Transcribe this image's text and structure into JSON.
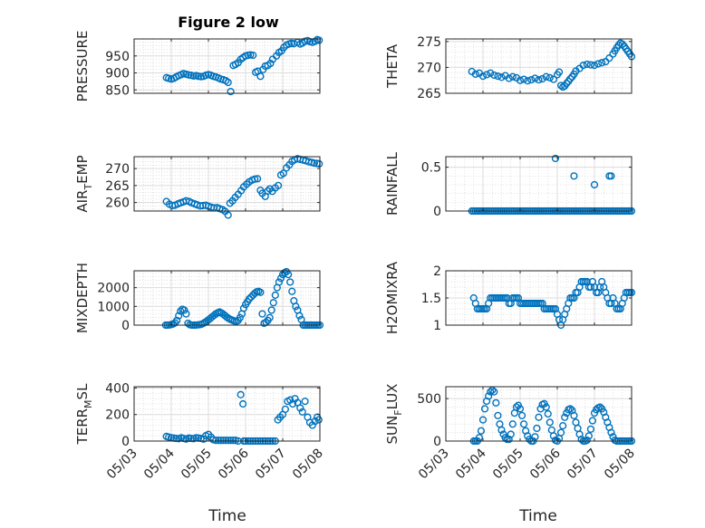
{
  "figure": {
    "title": "Figure 2 low",
    "xlabel": "Time",
    "x_tick_labels": [
      "05/03",
      "05/04",
      "05/05",
      "05/06",
      "05/07",
      "05/08"
    ],
    "marker_color": "#0072BD",
    "grid": true
  },
  "chart_data": [
    {
      "type": "scatter",
      "name": "PRESSURE",
      "ylabel": "PRESSURE",
      "title": "Figure 2 low",
      "xlim": [
        0,
        5
      ],
      "ylim": [
        840,
        1000
      ],
      "yticks": [
        850,
        900,
        950
      ],
      "ytick_labels": [
        "850",
        "900",
        "950"
      ],
      "show_x_ticklabels": false,
      "x": [
        0.87,
        0.93,
        1.0,
        1.07,
        1.13,
        1.2,
        1.27,
        1.33,
        1.4,
        1.47,
        1.53,
        1.6,
        1.67,
        1.73,
        1.8,
        1.87,
        1.93,
        2.0,
        2.07,
        2.13,
        2.2,
        2.27,
        2.33,
        2.4,
        2.47,
        2.53,
        2.6,
        2.67,
        2.73,
        2.8,
        2.87,
        2.93,
        3.0,
        3.07,
        3.13,
        3.2,
        3.27,
        3.33,
        3.4,
        3.47,
        3.53,
        3.6,
        3.67,
        3.73,
        3.83,
        3.9,
        3.97,
        4.03,
        4.1,
        4.17,
        4.23,
        4.3,
        4.4,
        4.47,
        4.53,
        4.6,
        4.67,
        4.73,
        4.8,
        4.87,
        4.93,
        4.98
      ],
      "y": [
        886,
        884,
        882,
        884,
        888,
        892,
        895,
        898,
        896,
        894,
        893,
        891,
        892,
        890,
        889,
        890,
        893,
        895,
        893,
        890,
        888,
        885,
        882,
        880,
        877,
        872,
        845,
        922,
        925,
        930,
        940,
        945,
        950,
        952,
        953,
        952,
        902,
        905,
        890,
        910,
        920,
        922,
        928,
        940,
        950,
        960,
        965,
        975,
        982,
        985,
        987,
        986,
        990,
        985,
        988,
        993,
        995,
        992,
        990,
        993,
        998,
        996
      ]
    },
    {
      "type": "scatter",
      "name": "THETA",
      "ylabel": "THETA",
      "xlim": [
        0,
        5
      ],
      "ylim": [
        265,
        275.5
      ],
      "yticks": [
        265,
        270,
        275
      ],
      "ytick_labels": [
        "265",
        "270",
        "275"
      ],
      "show_x_ticklabels": false,
      "x": [
        0.7,
        0.8,
        0.9,
        1.0,
        1.1,
        1.2,
        1.3,
        1.4,
        1.5,
        1.6,
        1.7,
        1.8,
        1.9,
        2.0,
        2.1,
        2.2,
        2.3,
        2.4,
        2.5,
        2.6,
        2.7,
        2.8,
        2.9,
        3.0,
        3.05,
        3.1,
        3.15,
        3.2,
        3.25,
        3.3,
        3.35,
        3.4,
        3.45,
        3.5,
        3.6,
        3.7,
        3.8,
        3.9,
        4.0,
        4.1,
        4.2,
        4.3,
        4.4,
        4.5,
        4.55,
        4.6,
        4.65,
        4.7,
        4.75,
        4.8,
        4.85,
        4.9,
        4.95,
        5.0
      ],
      "y": [
        269.2,
        268.7,
        268.9,
        268.3,
        268.6,
        268.9,
        268.5,
        268.3,
        268.1,
        268.4,
        267.9,
        268.2,
        268.0,
        267.5,
        267.7,
        267.4,
        267.6,
        267.9,
        267.6,
        267.8,
        268.2,
        268.0,
        267.7,
        268.6,
        269.1,
        266.5,
        266.2,
        266.4,
        266.9,
        267.3,
        267.8,
        268.2,
        268.7,
        269.3,
        269.8,
        270.4,
        270.6,
        270.5,
        270.4,
        270.7,
        270.9,
        271.1,
        271.8,
        272.6,
        273.2,
        273.8,
        274.3,
        274.7,
        274.5,
        274.1,
        273.6,
        273.1,
        272.6,
        272.1
      ]
    },
    {
      "type": "scatter",
      "name": "AIR_TEMP",
      "ylabel": "AIR_TEMP",
      "xlim": [
        0,
        5
      ],
      "ylim": [
        257.5,
        273.5
      ],
      "yticks": [
        260,
        265,
        270
      ],
      "ytick_labels": [
        "260",
        "265",
        "270"
      ],
      "show_x_ticklabels": false,
      "x": [
        0.87,
        0.95,
        1.03,
        1.1,
        1.18,
        1.25,
        1.33,
        1.4,
        1.48,
        1.55,
        1.63,
        1.7,
        1.78,
        1.85,
        1.93,
        2.0,
        2.08,
        2.15,
        2.23,
        2.3,
        2.38,
        2.45,
        2.53,
        2.58,
        2.65,
        2.72,
        2.8,
        2.88,
        2.95,
        3.03,
        3.1,
        3.18,
        3.25,
        3.32,
        3.4,
        3.45,
        3.53,
        3.6,
        3.65,
        3.72,
        3.8,
        3.88,
        3.95,
        4.02,
        4.1,
        4.18,
        4.25,
        4.32,
        4.4,
        4.47,
        4.55,
        4.62,
        4.7,
        4.78,
        4.85,
        4.92,
        4.98
      ],
      "y": [
        260.3,
        259.5,
        259.1,
        259.2,
        259.6,
        259.9,
        260.2,
        260.5,
        260.3,
        259.9,
        259.6,
        259.3,
        259.0,
        259.1,
        259.2,
        258.9,
        258.6,
        258.4,
        258.5,
        258.2,
        257.9,
        257.4,
        256.3,
        259.8,
        260.5,
        261.5,
        262.4,
        263.5,
        264.6,
        265.4,
        266.1,
        266.6,
        266.9,
        267.0,
        263.6,
        262.7,
        261.8,
        263.4,
        264.0,
        263.3,
        264.3,
        265.0,
        268.1,
        268.6,
        270.2,
        271.1,
        272.1,
        272.6,
        272.9,
        272.7,
        272.5,
        272.3,
        272.0,
        271.8,
        271.6,
        271.5,
        271.4
      ]
    },
    {
      "type": "scatter",
      "name": "RAINFALL",
      "ylabel": "RAINFALL",
      "xlim": [
        0,
        5
      ],
      "ylim": [
        0,
        0.62
      ],
      "yticks": [
        0,
        0.5
      ],
      "ytick_labels": [
        "0",
        "0.5"
      ],
      "show_x_ticklabels": false,
      "x": [
        0.7,
        0.75,
        0.8,
        0.85,
        0.9,
        0.95,
        1.0,
        1.05,
        1.1,
        1.15,
        1.2,
        1.25,
        1.3,
        1.35,
        1.4,
        1.45,
        1.5,
        1.55,
        1.6,
        1.65,
        1.7,
        1.75,
        1.8,
        1.85,
        1.9,
        1.95,
        2.0,
        2.05,
        2.1,
        2.15,
        2.2,
        2.25,
        2.3,
        2.35,
        2.4,
        2.45,
        2.5,
        2.55,
        2.6,
        2.65,
        2.7,
        2.75,
        2.8,
        2.85,
        2.9,
        2.95,
        3.0,
        3.05,
        3.1,
        3.15,
        3.2,
        3.25,
        3.3,
        3.35,
        3.4,
        3.45,
        3.5,
        3.55,
        3.6,
        3.65,
        3.7,
        3.75,
        3.8,
        3.85,
        3.9,
        3.95,
        4.0,
        4.05,
        4.1,
        4.15,
        4.2,
        4.25,
        4.3,
        4.35,
        4.4,
        4.45,
        4.5,
        4.55,
        4.6,
        4.65,
        4.7,
        4.75,
        4.8,
        4.85,
        4.9,
        4.95,
        5.0,
        2.95,
        3.45,
        4.0,
        4.4,
        4.45
      ],
      "y": [
        0,
        0,
        0,
        0,
        0,
        0,
        0,
        0,
        0,
        0,
        0,
        0,
        0,
        0,
        0,
        0,
        0,
        0,
        0,
        0,
        0,
        0,
        0,
        0,
        0,
        0,
        0,
        0,
        0,
        0,
        0,
        0,
        0,
        0,
        0,
        0,
        0,
        0,
        0,
        0,
        0,
        0,
        0,
        0,
        0,
        0,
        0,
        0,
        0,
        0,
        0,
        0,
        0,
        0,
        0,
        0,
        0,
        0,
        0,
        0,
        0,
        0,
        0,
        0,
        0,
        0,
        0,
        0,
        0,
        0,
        0,
        0,
        0,
        0,
        0,
        0,
        0,
        0,
        0,
        0,
        0,
        0,
        0,
        0,
        0,
        0,
        0,
        0.6,
        0.4,
        0.3,
        0.4,
        0.4
      ]
    },
    {
      "type": "scatter",
      "name": "MIXDEPTH",
      "ylabel": "MIXDEPTH",
      "xlim": [
        0,
        5
      ],
      "ylim": [
        0,
        2900
      ],
      "yticks": [
        0,
        1000,
        2000
      ],
      "ytick_labels": [
        "0",
        "1000",
        "2000"
      ],
      "show_x_ticklabels": false,
      "x": [
        0.85,
        0.9,
        0.95,
        1.0,
        1.05,
        1.1,
        1.15,
        1.2,
        1.25,
        1.3,
        1.35,
        1.4,
        1.45,
        1.5,
        1.55,
        1.6,
        1.65,
        1.7,
        1.75,
        1.8,
        1.85,
        1.9,
        1.95,
        2.0,
        2.05,
        2.1,
        2.15,
        2.2,
        2.25,
        2.3,
        2.35,
        2.4,
        2.45,
        2.5,
        2.55,
        2.6,
        2.65,
        2.7,
        2.75,
        2.8,
        2.85,
        2.9,
        2.95,
        3.0,
        3.05,
        3.1,
        3.15,
        3.2,
        3.25,
        3.3,
        3.35,
        3.4,
        3.45,
        3.5,
        3.55,
        3.6,
        3.65,
        3.7,
        3.75,
        3.8,
        3.85,
        3.9,
        3.95,
        4.0,
        4.05,
        4.1,
        4.15,
        4.2,
        4.25,
        4.3,
        4.35,
        4.4,
        4.45,
        4.5,
        4.55,
        4.6,
        4.65,
        4.7,
        4.75,
        4.8,
        4.85,
        4.9,
        4.95,
        5.0
      ],
      "y": [
        0,
        0,
        10,
        30,
        60,
        120,
        250,
        500,
        750,
        850,
        800,
        600,
        100,
        20,
        0,
        0,
        0,
        10,
        20,
        40,
        80,
        140,
        200,
        280,
        360,
        440,
        520,
        600,
        660,
        700,
        650,
        580,
        500,
        420,
        350,
        300,
        260,
        220,
        200,
        250,
        400,
        600,
        900,
        1100,
        1250,
        1400,
        1500,
        1600,
        1700,
        1780,
        1800,
        1750,
        600,
        100,
        150,
        250,
        400,
        800,
        1200,
        1600,
        2000,
        2300,
        2500,
        2700,
        2800,
        2850,
        2700,
        2300,
        1800,
        1300,
        1000,
        800,
        500,
        300,
        0,
        0,
        0,
        0,
        0,
        0,
        0,
        0,
        0,
        0
      ]
    },
    {
      "type": "scatter",
      "name": "H2OMIXRA",
      "ylabel": "H2OMIXRA",
      "xlim": [
        0,
        5
      ],
      "ylim": [
        1,
        2
      ],
      "yticks": [
        1,
        1.5,
        2
      ],
      "ytick_labels": [
        "1",
        "1.5",
        "2"
      ],
      "show_x_ticklabels": false,
      "x": [
        0.75,
        0.8,
        0.85,
        0.9,
        0.95,
        1.0,
        1.05,
        1.1,
        1.15,
        1.2,
        1.25,
        1.3,
        1.35,
        1.4,
        1.45,
        1.5,
        1.55,
        1.6,
        1.65,
        1.7,
        1.75,
        1.8,
        1.85,
        1.9,
        1.95,
        2.0,
        2.05,
        2.1,
        2.15,
        2.2,
        2.25,
        2.3,
        2.35,
        2.4,
        2.45,
        2.5,
        2.55,
        2.6,
        2.65,
        2.7,
        2.75,
        2.8,
        2.85,
        2.9,
        2.95,
        3.0,
        3.05,
        3.1,
        3.15,
        3.2,
        3.25,
        3.3,
        3.35,
        3.4,
        3.45,
        3.5,
        3.55,
        3.6,
        3.65,
        3.7,
        3.75,
        3.8,
        3.85,
        3.9,
        3.95,
        4.0,
        4.05,
        4.1,
        4.15,
        4.2,
        4.25,
        4.3,
        4.35,
        4.4,
        4.45,
        4.5,
        4.55,
        4.6,
        4.65,
        4.7,
        4.75,
        4.8,
        4.85,
        4.9,
        4.95,
        5.0
      ],
      "y": [
        1.5,
        1.4,
        1.3,
        1.3,
        1.3,
        1.3,
        1.3,
        1.3,
        1.4,
        1.5,
        1.5,
        1.5,
        1.5,
        1.5,
        1.5,
        1.5,
        1.5,
        1.5,
        1.5,
        1.4,
        1.4,
        1.5,
        1.5,
        1.5,
        1.5,
        1.4,
        1.4,
        1.4,
        1.4,
        1.4,
        1.4,
        1.4,
        1.4,
        1.4,
        1.4,
        1.4,
        1.4,
        1.4,
        1.3,
        1.3,
        1.3,
        1.3,
        1.3,
        1.3,
        1.3,
        1.2,
        1.1,
        1.0,
        1.1,
        1.2,
        1.3,
        1.4,
        1.5,
        1.5,
        1.5,
        1.6,
        1.6,
        1.7,
        1.8,
        1.8,
        1.8,
        1.8,
        1.7,
        1.7,
        1.8,
        1.7,
        1.6,
        1.6,
        1.7,
        1.8,
        1.7,
        1.6,
        1.5,
        1.4,
        1.4,
        1.5,
        1.4,
        1.3,
        1.3,
        1.3,
        1.4,
        1.5,
        1.6,
        1.6,
        1.6,
        1.6
      ]
    },
    {
      "type": "scatter",
      "name": "TERR_MSL",
      "ylabel": "TERR_MSL",
      "xlim": [
        0,
        5
      ],
      "ylim": [
        0,
        410
      ],
      "yticks": [
        0,
        200,
        400
      ],
      "ytick_labels": [
        "0",
        "200",
        "400"
      ],
      "show_x_ticklabels": true,
      "x": [
        0.87,
        0.93,
        1.0,
        1.07,
        1.13,
        1.2,
        1.27,
        1.33,
        1.4,
        1.47,
        1.53,
        1.6,
        1.67,
        1.73,
        1.8,
        1.87,
        1.93,
        2.0,
        2.07,
        2.13,
        2.2,
        2.27,
        2.33,
        2.4,
        2.47,
        2.53,
        2.6,
        2.67,
        2.73,
        2.8,
        2.87,
        2.93,
        2.95,
        3.0,
        3.07,
        3.13,
        3.2,
        3.27,
        3.33,
        3.4,
        3.47,
        3.53,
        3.6,
        3.67,
        3.73,
        3.8,
        3.87,
        3.93,
        4.0,
        4.07,
        4.13,
        4.2,
        4.27,
        4.33,
        4.4,
        4.47,
        4.53,
        4.6,
        4.67,
        4.73,
        4.8,
        4.87,
        4.93,
        4.97
      ],
      "y": [
        35,
        30,
        25,
        22,
        20,
        18,
        25,
        20,
        15,
        22,
        20,
        18,
        25,
        22,
        20,
        15,
        40,
        50,
        30,
        10,
        5,
        5,
        5,
        5,
        5,
        5,
        5,
        5,
        5,
        0,
        350,
        280,
        0,
        0,
        0,
        0,
        0,
        0,
        0,
        0,
        0,
        0,
        0,
        0,
        0,
        0,
        160,
        180,
        200,
        240,
        300,
        310,
        280,
        320,
        290,
        250,
        220,
        300,
        180,
        140,
        120,
        150,
        180,
        160
      ]
    },
    {
      "type": "scatter",
      "name": "SUN_FLUX",
      "ylabel": "SUN_FLUX",
      "xlim": [
        0,
        5
      ],
      "ylim": [
        0,
        640
      ],
      "yticks": [
        0,
        500
      ],
      "ytick_labels": [
        "0",
        "500"
      ],
      "show_x_ticklabels": true,
      "x": [
        0.75,
        0.8,
        0.85,
        0.9,
        0.95,
        1.0,
        1.05,
        1.1,
        1.15,
        1.2,
        1.25,
        1.3,
        1.35,
        1.4,
        1.45,
        1.5,
        1.55,
        1.6,
        1.65,
        1.7,
        1.75,
        1.8,
        1.85,
        1.9,
        1.95,
        2.0,
        2.05,
        2.1,
        2.15,
        2.2,
        2.25,
        2.3,
        2.35,
        2.4,
        2.45,
        2.5,
        2.55,
        2.6,
        2.65,
        2.7,
        2.75,
        2.8,
        2.85,
        2.9,
        2.95,
        3.0,
        3.05,
        3.1,
        3.15,
        3.2,
        3.25,
        3.3,
        3.35,
        3.4,
        3.45,
        3.5,
        3.55,
        3.6,
        3.65,
        3.7,
        3.75,
        3.8,
        3.85,
        3.9,
        3.95,
        4.0,
        4.05,
        4.1,
        4.15,
        4.2,
        4.25,
        4.3,
        4.35,
        4.4,
        4.45,
        4.5,
        4.55,
        4.6,
        4.65,
        4.7,
        4.75,
        4.8,
        4.85,
        4.9,
        4.95,
        5.0
      ],
      "y": [
        0,
        0,
        0,
        40,
        120,
        250,
        380,
        470,
        530,
        580,
        600,
        580,
        450,
        300,
        200,
        130,
        80,
        40,
        20,
        20,
        80,
        200,
        330,
        400,
        420,
        380,
        300,
        200,
        120,
        60,
        20,
        0,
        0,
        50,
        150,
        280,
        380,
        430,
        440,
        400,
        320,
        220,
        130,
        60,
        10,
        0,
        30,
        100,
        180,
        280,
        330,
        370,
        380,
        360,
        300,
        220,
        150,
        80,
        20,
        0,
        0,
        10,
        60,
        140,
        240,
        330,
        370,
        390,
        400,
        380,
        340,
        280,
        220,
        160,
        100,
        50,
        10,
        0,
        0,
        0,
        0,
        0,
        0,
        0,
        0,
        0
      ]
    }
  ]
}
